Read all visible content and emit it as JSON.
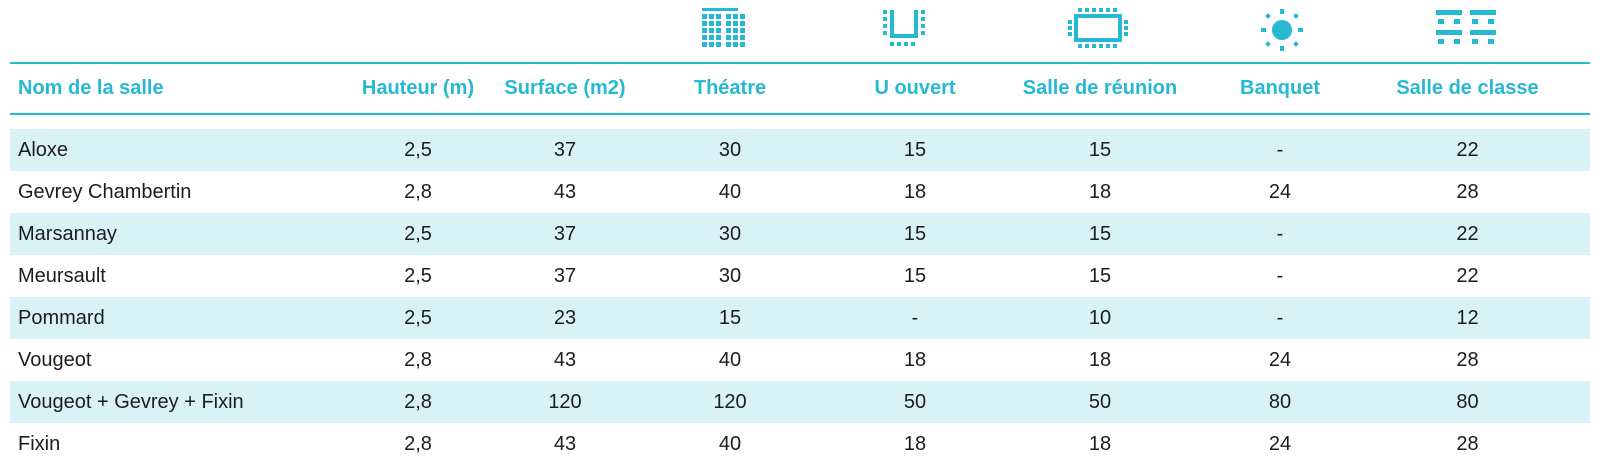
{
  "colors": {
    "accent": "#27b8d2",
    "row_shade": "#d9f2f7",
    "text": "#1d1d1d"
  },
  "icons": {
    "theatre": "theatre-seating-icon",
    "u_ouvert": "u-shape-layout-icon",
    "reunion": "boardroom-layout-icon",
    "banquet": "banquet-round-table-icon",
    "classe": "classroom-layout-icon"
  },
  "table": {
    "headers": {
      "name": "Nom de la salle",
      "hauteur": "Hauteur (m)",
      "surface": "Surface (m2)",
      "theatre": "Théatre",
      "u_ouvert": "U ouvert",
      "reunion": "Salle de réunion",
      "banquet": "Banquet",
      "classe": "Salle de classe"
    },
    "rows": [
      {
        "name": "Aloxe",
        "hauteur": "2,5",
        "surface": "37",
        "theatre": "30",
        "u_ouvert": "15",
        "reunion": "15",
        "banquet": "-",
        "classe": "22"
      },
      {
        "name": "Gevrey Chambertin",
        "hauteur": "2,8",
        "surface": "43",
        "theatre": "40",
        "u_ouvert": "18",
        "reunion": "18",
        "banquet": "24",
        "classe": "28"
      },
      {
        "name": "Marsannay",
        "hauteur": "2,5",
        "surface": "37",
        "theatre": "30",
        "u_ouvert": "15",
        "reunion": "15",
        "banquet": "-",
        "classe": "22"
      },
      {
        "name": "Meursault",
        "hauteur": "2,5",
        "surface": "37",
        "theatre": "30",
        "u_ouvert": "15",
        "reunion": "15",
        "banquet": "-",
        "classe": "22"
      },
      {
        "name": "Pommard",
        "hauteur": "2,5",
        "surface": "23",
        "theatre": "15",
        "u_ouvert": "-",
        "reunion": "10",
        "banquet": "-",
        "classe": "12"
      },
      {
        "name": "Vougeot",
        "hauteur": "2,8",
        "surface": "43",
        "theatre": "40",
        "u_ouvert": "18",
        "reunion": "18",
        "banquet": "24",
        "classe": "28"
      },
      {
        "name": "Vougeot + Gevrey + Fixin",
        "hauteur": "2,8",
        "surface": "120",
        "theatre": "120",
        "u_ouvert": "50",
        "reunion": "50",
        "banquet": "80",
        "classe": "80"
      },
      {
        "name": "Fixin",
        "hauteur": "2,8",
        "surface": "43",
        "theatre": "40",
        "u_ouvert": "18",
        "reunion": "18",
        "banquet": "24",
        "classe": "28"
      }
    ]
  }
}
